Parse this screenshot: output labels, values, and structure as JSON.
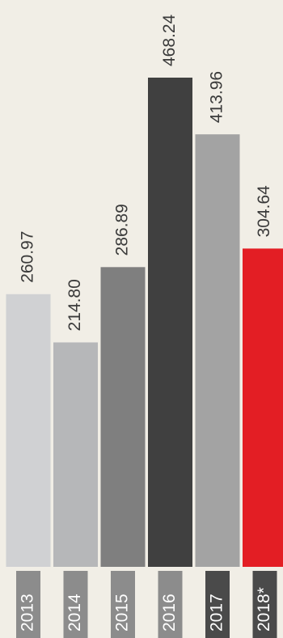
{
  "chart_data": {
    "type": "bar",
    "categories": [
      "2013",
      "2014",
      "2015",
      "2016",
      "2017",
      "2018*"
    ],
    "values": [
      260.97,
      214.8,
      286.89,
      468.24,
      413.96,
      304.64
    ],
    "value_labels": [
      "260.97",
      "214.80",
      "286.89",
      "468.24",
      "413.96",
      "304.64"
    ],
    "title": "",
    "xlabel": "",
    "ylabel": "",
    "ylim": [
      0,
      468.24
    ],
    "grid": false,
    "legend": "none",
    "orientation": "vertical bars with rotated labels",
    "bar_colors": [
      "#d0d1d3",
      "#b6b7b9",
      "#7f7f7f",
      "#404040",
      "#a3a3a3",
      "#e31e24"
    ],
    "year_tag_colors": [
      "#8c8c8c",
      "#8c8c8c",
      "#8c8c8c",
      "#8c8c8c",
      "#4a4a4a",
      "#4a4a4a"
    ]
  },
  "colors": {
    "background": "#f1eee6",
    "value_text": "#3a3a3a",
    "year_text": "#ffffff"
  }
}
